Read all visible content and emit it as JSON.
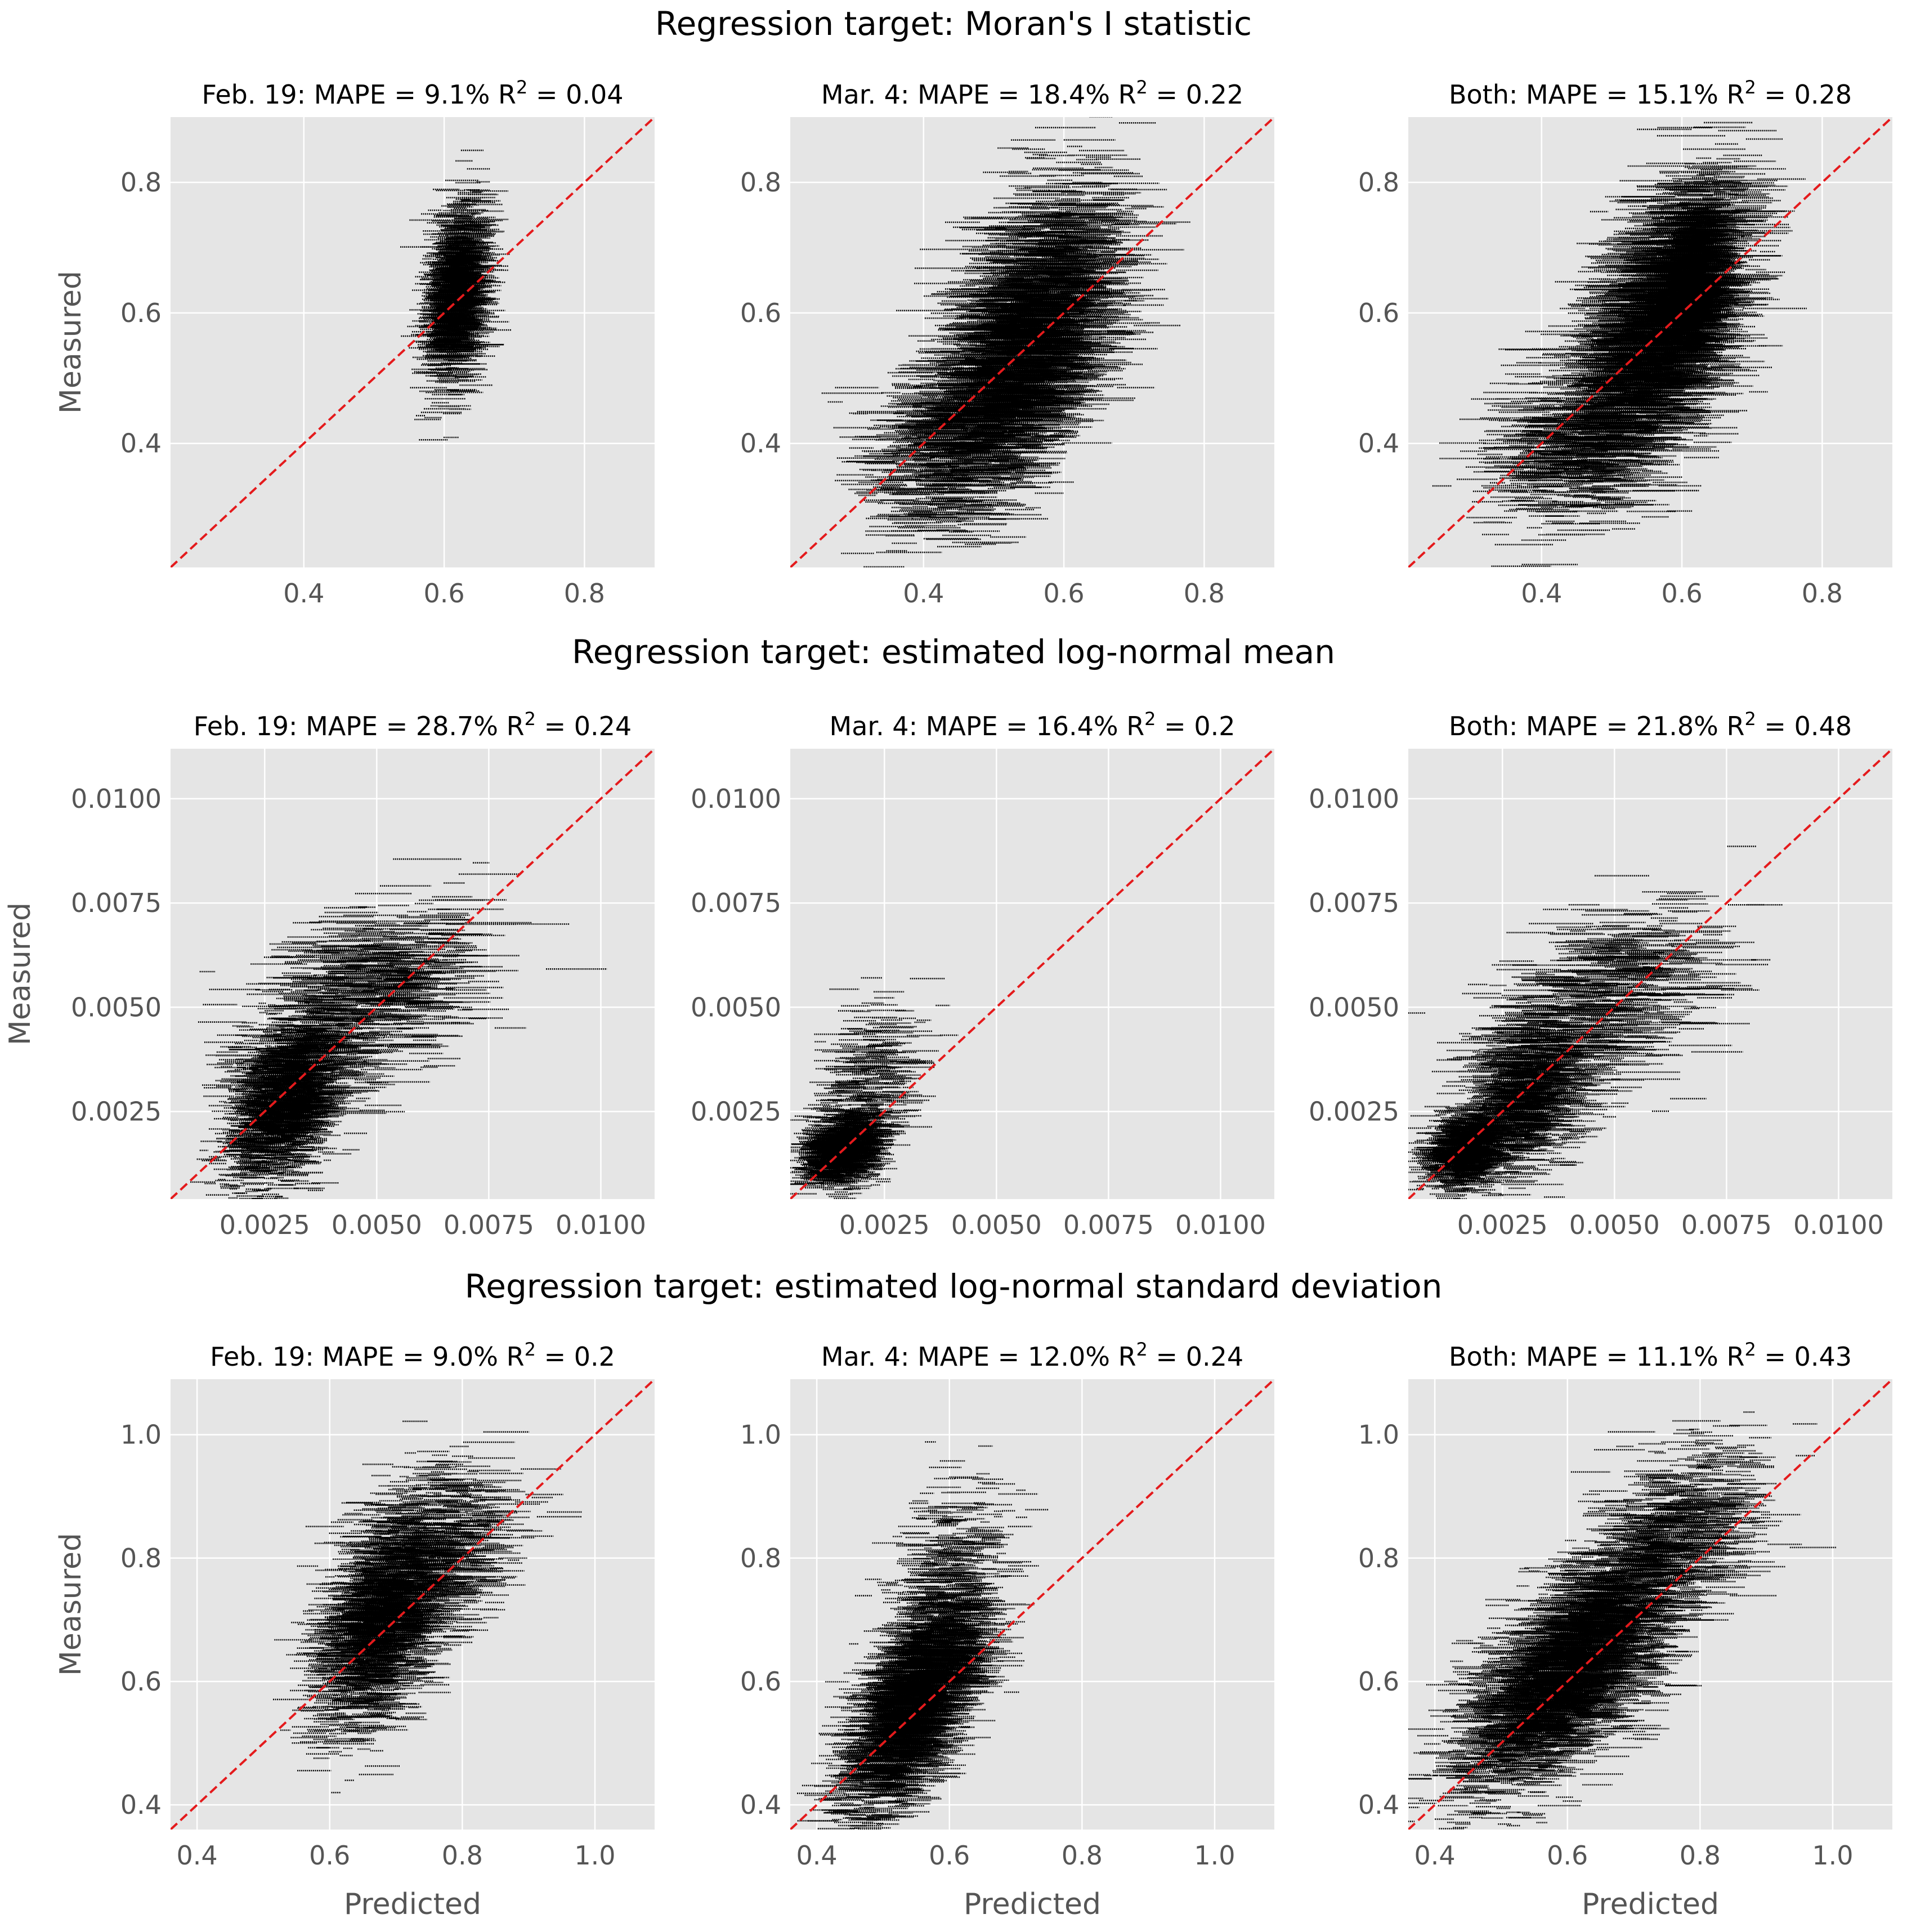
{
  "figure": {
    "row_titles": [
      "Regression target: Moran's I statistic",
      "Regression target: estimated log-normal mean",
      "Regression target: estimated log-normal standard deviation"
    ],
    "xlabel": "Predicted",
    "ylabel": "Measured"
  },
  "colors": {
    "background": "#ffffff",
    "panel": "#e5e5e5",
    "grid": "#ffffff",
    "points": "#000000",
    "identity_line": "#e41a1c",
    "tick_text": "#555555",
    "title_text": "#000000"
  },
  "chart_data": [
    {
      "type": "scatter",
      "row": 0,
      "col": 0,
      "title": "Feb. 19:  MAPE = 9.1%  R",
      "title_sup": "2",
      "title_tail": " = 0.04",
      "xlim": [
        0.21,
        0.9
      ],
      "ylim": [
        0.21,
        0.9
      ],
      "xticks": [
        "0.4",
        "0.6",
        "0.8"
      ],
      "yticks": [
        "0.4",
        "0.6",
        "0.8"
      ],
      "xtick_values": [
        0.4,
        0.6,
        0.8
      ],
      "ytick_values": [
        0.4,
        0.6,
        0.8
      ],
      "xlabel": "",
      "ylabel": "Measured",
      "identity_line": true,
      "clusters": [
        {
          "cx": 0.62,
          "cy": 0.63,
          "sx": 0.018,
          "sy": 0.065,
          "corr": 0.3,
          "n": 1400,
          "seglen": 0.06
        }
      ]
    },
    {
      "type": "scatter",
      "row": 0,
      "col": 1,
      "title": "Mar. 4:  MAPE = 18.4%  R",
      "title_sup": "2",
      "title_tail": " = 0.22",
      "xlim": [
        0.21,
        0.9
      ],
      "ylim": [
        0.21,
        0.9
      ],
      "xticks": [
        "0.4",
        "0.6",
        "0.8"
      ],
      "yticks": [
        "0.4",
        "0.6",
        "0.8"
      ],
      "xtick_values": [
        0.4,
        0.6,
        0.8
      ],
      "ytick_values": [
        0.4,
        0.6,
        0.8
      ],
      "xlabel": "",
      "ylabel": "",
      "identity_line": true,
      "clusters": [
        {
          "cx": 0.55,
          "cy": 0.56,
          "sx": 0.06,
          "sy": 0.11,
          "corr": 0.55,
          "n": 2600,
          "seglen": 0.1
        },
        {
          "cx": 0.44,
          "cy": 0.4,
          "sx": 0.06,
          "sy": 0.06,
          "corr": 0.3,
          "n": 600,
          "seglen": 0.09
        }
      ]
    },
    {
      "type": "scatter",
      "row": 0,
      "col": 2,
      "title": "Both:  MAPE = 15.1%  R",
      "title_sup": "2",
      "title_tail": " = 0.28",
      "xlim": [
        0.21,
        0.9
      ],
      "ylim": [
        0.21,
        0.9
      ],
      "xticks": [
        "0.4",
        "0.6",
        "0.8"
      ],
      "yticks": [
        "0.4",
        "0.6",
        "0.8"
      ],
      "xtick_values": [
        0.4,
        0.6,
        0.8
      ],
      "ytick_values": [
        0.4,
        0.6,
        0.8
      ],
      "xlabel": "",
      "ylabel": "",
      "identity_line": true,
      "clusters": [
        {
          "cx": 0.57,
          "cy": 0.58,
          "sx": 0.055,
          "sy": 0.105,
          "corr": 0.5,
          "n": 2600,
          "seglen": 0.1
        },
        {
          "cx": 0.62,
          "cy": 0.65,
          "sx": 0.02,
          "sy": 0.06,
          "corr": 0.3,
          "n": 900,
          "seglen": 0.06
        },
        {
          "cx": 0.44,
          "cy": 0.4,
          "sx": 0.06,
          "sy": 0.06,
          "corr": 0.3,
          "n": 500,
          "seglen": 0.09
        }
      ]
    },
    {
      "type": "scatter",
      "row": 1,
      "col": 0,
      "title": "Feb. 19:  MAPE = 28.7%  R",
      "title_sup": "2",
      "title_tail": " = 0.24",
      "xlim": [
        0.0004,
        0.0112
      ],
      "ylim": [
        0.0004,
        0.0112
      ],
      "xticks": [
        "0.0025",
        "0.0050",
        "0.0075",
        "0.0100"
      ],
      "yticks": [
        "0.0025",
        "0.0050",
        "0.0075",
        "0.0100"
      ],
      "xtick_values": [
        0.0025,
        0.005,
        0.0075,
        0.01
      ],
      "ytick_values": [
        0.0025,
        0.005,
        0.0075,
        0.01
      ],
      "xlabel": "",
      "ylabel": "Measured",
      "identity_line": true,
      "clusters": [
        {
          "cx": 0.003,
          "cy": 0.0028,
          "sx": 0.0006,
          "sy": 0.0009,
          "corr": 0.4,
          "n": 2200,
          "seglen": 0.0007
        },
        {
          "cx": 0.0048,
          "cy": 0.0052,
          "sx": 0.0012,
          "sy": 0.0011,
          "corr": 0.4,
          "n": 700,
          "seglen": 0.0016
        }
      ]
    },
    {
      "type": "scatter",
      "row": 1,
      "col": 1,
      "title": "Mar. 4:  MAPE = 16.4%  R",
      "title_sup": "2",
      "title_tail": " = 0.2",
      "xlim": [
        0.0004,
        0.0112
      ],
      "ylim": [
        0.0004,
        0.0112
      ],
      "xticks": [
        "0.0025",
        "0.0050",
        "0.0075",
        "0.0100"
      ],
      "yticks": [
        "0.0025",
        "0.0050",
        "0.0075",
        "0.0100"
      ],
      "xtick_values": [
        0.0025,
        0.005,
        0.0075,
        0.01
      ],
      "ytick_values": [
        0.0025,
        0.005,
        0.0075,
        0.01
      ],
      "xlabel": "",
      "ylabel": "",
      "identity_line": true,
      "clusters": [
        {
          "cx": 0.0016,
          "cy": 0.0016,
          "sx": 0.0004,
          "sy": 0.0004,
          "corr": 0.3,
          "n": 1400,
          "seglen": 0.0007
        },
        {
          "cx": 0.0022,
          "cy": 0.0032,
          "sx": 0.0006,
          "sy": 0.0009,
          "corr": 0.3,
          "n": 300,
          "seglen": 0.001
        }
      ]
    },
    {
      "type": "scatter",
      "row": 1,
      "col": 2,
      "title": "Both:  MAPE = 21.8%  R",
      "title_sup": "2",
      "title_tail": " = 0.48",
      "xlim": [
        0.0004,
        0.0112
      ],
      "ylim": [
        0.0004,
        0.0112
      ],
      "xticks": [
        "0.0025",
        "0.0050",
        "0.0075",
        "0.0100"
      ],
      "yticks": [
        "0.0025",
        "0.0050",
        "0.0075",
        "0.0100"
      ],
      "xtick_values": [
        0.0025,
        0.005,
        0.0075,
        0.01
      ],
      "ytick_values": [
        0.0025,
        0.005,
        0.0075,
        0.01
      ],
      "xlabel": "",
      "ylabel": "",
      "identity_line": true,
      "clusters": [
        {
          "cx": 0.0017,
          "cy": 0.0016,
          "sx": 0.0004,
          "sy": 0.0004,
          "corr": 0.3,
          "n": 1200,
          "seglen": 0.0007
        },
        {
          "cx": 0.003,
          "cy": 0.0028,
          "sx": 0.0007,
          "sy": 0.0009,
          "corr": 0.4,
          "n": 1300,
          "seglen": 0.0009
        },
        {
          "cx": 0.0048,
          "cy": 0.0052,
          "sx": 0.0012,
          "sy": 0.0011,
          "corr": 0.4,
          "n": 600,
          "seglen": 0.0016
        }
      ]
    },
    {
      "type": "scatter",
      "row": 2,
      "col": 0,
      "title": "Feb. 19:  MAPE = 9.0%  R",
      "title_sup": "2",
      "title_tail": " = 0.2",
      "xlim": [
        0.36,
        1.09
      ],
      "ylim": [
        0.36,
        1.09
      ],
      "xticks": [
        "0.4",
        "0.6",
        "0.8",
        "1.0"
      ],
      "yticks": [
        "0.4",
        "0.6",
        "0.8",
        "1.0"
      ],
      "xtick_values": [
        0.4,
        0.6,
        0.8,
        1.0
      ],
      "ytick_values": [
        0.4,
        0.6,
        0.8,
        1.0
      ],
      "xlabel": "Predicted",
      "ylabel": "Measured",
      "identity_line": true,
      "clusters": [
        {
          "cx": 0.68,
          "cy": 0.7,
          "sx": 0.045,
          "sy": 0.085,
          "corr": 0.45,
          "n": 2200,
          "seglen": 0.06
        },
        {
          "cx": 0.78,
          "cy": 0.82,
          "sx": 0.05,
          "sy": 0.07,
          "corr": 0.3,
          "n": 500,
          "seglen": 0.08
        }
      ]
    },
    {
      "type": "scatter",
      "row": 2,
      "col": 1,
      "title": "Mar. 4:  MAPE = 12.0%  R",
      "title_sup": "2",
      "title_tail": " = 0.24",
      "xlim": [
        0.36,
        1.09
      ],
      "ylim": [
        0.36,
        1.09
      ],
      "xticks": [
        "0.4",
        "0.6",
        "0.8",
        "1.0"
      ],
      "yticks": [
        "0.4",
        "0.6",
        "0.8",
        "1.0"
      ],
      "xtick_values": [
        0.4,
        0.6,
        0.8,
        1.0
      ],
      "ytick_values": [
        0.4,
        0.6,
        0.8,
        1.0
      ],
      "xlabel": "Predicted",
      "ylabel": "",
      "identity_line": true,
      "clusters": [
        {
          "cx": 0.55,
          "cy": 0.57,
          "sx": 0.05,
          "sy": 0.09,
          "corr": 0.65,
          "n": 2800,
          "seglen": 0.07
        },
        {
          "cx": 0.6,
          "cy": 0.8,
          "sx": 0.04,
          "sy": 0.07,
          "corr": 0.3,
          "n": 300,
          "seglen": 0.06
        }
      ]
    },
    {
      "type": "scatter",
      "row": 2,
      "col": 2,
      "title": "Both:  MAPE = 11.1%  R",
      "title_sup": "2",
      "title_tail": " = 0.43",
      "xlim": [
        0.36,
        1.09
      ],
      "ylim": [
        0.36,
        1.09
      ],
      "xticks": [
        "0.4",
        "0.6",
        "0.8",
        "1.0"
      ],
      "yticks": [
        "0.4",
        "0.6",
        "0.8",
        "1.0"
      ],
      "xtick_values": [
        0.4,
        0.6,
        0.8,
        1.0
      ],
      "ytick_values": [
        0.4,
        0.6,
        0.8,
        1.0
      ],
      "xlabel": "Predicted",
      "ylabel": "",
      "identity_line": true,
      "clusters": [
        {
          "cx": 0.61,
          "cy": 0.63,
          "sx": 0.08,
          "sy": 0.1,
          "corr": 0.7,
          "n": 3600,
          "seglen": 0.07
        },
        {
          "cx": 0.78,
          "cy": 0.85,
          "sx": 0.06,
          "sy": 0.07,
          "corr": 0.3,
          "n": 500,
          "seglen": 0.08
        }
      ]
    }
  ]
}
